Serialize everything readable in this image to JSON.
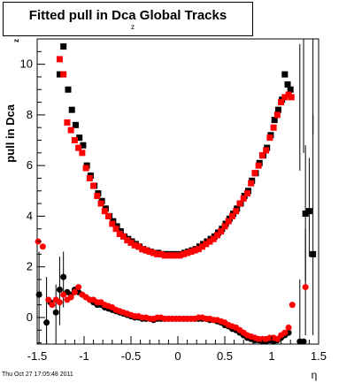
{
  "chart_data": {
    "type": "scatter",
    "title": "Fitted pull in Dca",
    "title_subscript": "z",
    "title_suffix": " Global Tracks",
    "ylabel": "pull in Dca",
    "ylabel_subscript": "z",
    "xlabel": "η",
    "xlim": [
      -1.5,
      1.5
    ],
    "ylim": [
      -1.05,
      11.0
    ],
    "xticks": [
      -1.5,
      -1,
      -0.5,
      0,
      0.5,
      1,
      1.5
    ],
    "xtick_labels": [
      "-1.5",
      "-1",
      "-0.5",
      "0",
      "0.5",
      "1",
      "1.5"
    ],
    "yticks": [
      0,
      2,
      4,
      6,
      8,
      10
    ],
    "ytick_labels": [
      "0",
      "2",
      "4",
      "6",
      "8",
      "10"
    ],
    "grid": false,
    "legend": "none",
    "series": [
      {
        "marker": "square",
        "color": "#000000",
        "points": [
          [
            -1.22,
            10.7
          ],
          [
            -1.26,
            9.6
          ],
          [
            -1.17,
            9.0
          ],
          [
            -1.13,
            8.2
          ],
          [
            -1.09,
            7.6
          ],
          [
            -1.05,
            7.1
          ],
          [
            -1.01,
            6.8
          ],
          [
            -0.97,
            6.0
          ],
          [
            -0.93,
            5.6
          ],
          [
            -0.89,
            5.2
          ],
          [
            -0.85,
            4.9
          ],
          [
            -0.81,
            4.6
          ],
          [
            -0.77,
            4.3
          ],
          [
            -0.73,
            4.0
          ],
          [
            -0.69,
            3.8
          ],
          [
            -0.65,
            3.6
          ],
          [
            -0.61,
            3.4
          ],
          [
            -0.57,
            3.2
          ],
          [
            -0.53,
            3.1
          ],
          [
            -0.49,
            3.0
          ],
          [
            -0.45,
            2.9
          ],
          [
            -0.41,
            2.8
          ],
          [
            -0.37,
            2.7
          ],
          [
            -0.33,
            2.65
          ],
          [
            -0.29,
            2.6
          ],
          [
            -0.25,
            2.55
          ],
          [
            -0.21,
            2.55
          ],
          [
            -0.17,
            2.5
          ],
          [
            -0.13,
            2.5
          ],
          [
            -0.09,
            2.5
          ],
          [
            -0.05,
            2.5
          ],
          [
            -0.01,
            2.5
          ],
          [
            0.03,
            2.5
          ],
          [
            0.07,
            2.55
          ],
          [
            0.11,
            2.6
          ],
          [
            0.15,
            2.65
          ],
          [
            0.19,
            2.7
          ],
          [
            0.23,
            2.8
          ],
          [
            0.27,
            2.9
          ],
          [
            0.31,
            3.0
          ],
          [
            0.35,
            3.1
          ],
          [
            0.39,
            3.2
          ],
          [
            0.43,
            3.35
          ],
          [
            0.47,
            3.5
          ],
          [
            0.51,
            3.7
          ],
          [
            0.55,
            3.9
          ],
          [
            0.59,
            4.1
          ],
          [
            0.63,
            4.3
          ],
          [
            0.67,
            4.5
          ],
          [
            0.71,
            4.8
          ],
          [
            0.75,
            5.0
          ],
          [
            0.79,
            5.4
          ],
          [
            0.83,
            5.7
          ],
          [
            0.87,
            6.1
          ],
          [
            0.91,
            6.4
          ],
          [
            0.95,
            6.7
          ],
          [
            0.99,
            7.2
          ],
          [
            1.03,
            7.8
          ],
          [
            1.07,
            8.2
          ],
          [
            1.11,
            8.6
          ],
          [
            1.14,
            9.6
          ],
          [
            1.17,
            9.2
          ],
          [
            1.2,
            9.0
          ],
          [
            1.36,
            4.1
          ],
          [
            1.4,
            4.2
          ],
          [
            1.44,
            2.5
          ]
        ]
      },
      {
        "marker": "square",
        "color": "#ff0000",
        "points": [
          [
            -1.26,
            10.2
          ],
          [
            -1.22,
            9.6
          ],
          [
            -1.18,
            7.7
          ],
          [
            -1.14,
            7.4
          ],
          [
            -1.1,
            7.0
          ],
          [
            -1.06,
            6.7
          ],
          [
            -1.02,
            6.5
          ],
          [
            -0.98,
            5.9
          ],
          [
            -0.94,
            5.5
          ],
          [
            -0.9,
            5.2
          ],
          [
            -0.86,
            4.8
          ],
          [
            -0.82,
            4.5
          ],
          [
            -0.78,
            4.2
          ],
          [
            -0.74,
            4.0
          ],
          [
            -0.7,
            3.7
          ],
          [
            -0.66,
            3.5
          ],
          [
            -0.62,
            3.3
          ],
          [
            -0.58,
            3.2
          ],
          [
            -0.54,
            3.05
          ],
          [
            -0.5,
            2.95
          ],
          [
            -0.46,
            2.85
          ],
          [
            -0.42,
            2.8
          ],
          [
            -0.38,
            2.7
          ],
          [
            -0.34,
            2.65
          ],
          [
            -0.3,
            2.6
          ],
          [
            -0.26,
            2.55
          ],
          [
            -0.22,
            2.5
          ],
          [
            -0.18,
            2.5
          ],
          [
            -0.14,
            2.45
          ],
          [
            -0.1,
            2.45
          ],
          [
            -0.06,
            2.45
          ],
          [
            -0.02,
            2.45
          ],
          [
            0.02,
            2.45
          ],
          [
            0.06,
            2.5
          ],
          [
            0.1,
            2.55
          ],
          [
            0.14,
            2.6
          ],
          [
            0.18,
            2.65
          ],
          [
            0.22,
            2.7
          ],
          [
            0.26,
            2.8
          ],
          [
            0.3,
            2.9
          ],
          [
            0.34,
            3.0
          ],
          [
            0.38,
            3.1
          ],
          [
            0.42,
            3.25
          ],
          [
            0.46,
            3.4
          ],
          [
            0.5,
            3.6
          ],
          [
            0.54,
            3.8
          ],
          [
            0.58,
            4.0
          ],
          [
            0.62,
            4.2
          ],
          [
            0.66,
            4.5
          ],
          [
            0.7,
            4.7
          ],
          [
            0.74,
            4.9
          ],
          [
            0.78,
            5.3
          ],
          [
            0.82,
            5.7
          ],
          [
            0.86,
            6.0
          ],
          [
            0.9,
            6.4
          ],
          [
            0.94,
            6.6
          ],
          [
            0.98,
            7.1
          ],
          [
            1.02,
            7.5
          ],
          [
            1.06,
            8.0
          ],
          [
            1.1,
            8.5
          ],
          [
            1.14,
            8.7
          ],
          [
            1.18,
            8.8
          ],
          [
            1.21,
            8.7
          ]
        ]
      },
      {
        "marker": "circle",
        "color": "#000000",
        "points": [
          [
            -1.48,
            0.9
          ],
          [
            -1.4,
            -0.2
          ],
          [
            -1.36,
            0.6
          ],
          [
            -1.3,
            0.2
          ],
          [
            -1.26,
            1.1
          ],
          [
            -1.22,
            1.6
          ],
          [
            -1.18,
            1.0
          ],
          [
            -1.14,
            0.9
          ],
          [
            -1.1,
            1.1
          ],
          [
            -1.06,
            1.0
          ],
          [
            -1.02,
            0.9
          ],
          [
            -0.98,
            0.8
          ],
          [
            -0.94,
            0.7
          ],
          [
            -0.9,
            0.6
          ],
          [
            -0.86,
            0.5
          ],
          [
            -0.82,
            0.5
          ],
          [
            -0.78,
            0.4
          ],
          [
            -0.74,
            0.35
          ],
          [
            -0.7,
            0.3
          ],
          [
            -0.66,
            0.25
          ],
          [
            -0.62,
            0.2
          ],
          [
            -0.58,
            0.15
          ],
          [
            -0.54,
            0.1
          ],
          [
            -0.5,
            0.05
          ],
          [
            -0.46,
            0.0
          ],
          [
            -0.42,
            0.0
          ],
          [
            -0.38,
            -0.05
          ],
          [
            -0.34,
            -0.05
          ],
          [
            -0.3,
            -0.05
          ],
          [
            -0.26,
            -0.1
          ],
          [
            -0.22,
            -0.05
          ],
          [
            -0.18,
            -0.05
          ],
          [
            -0.14,
            -0.05
          ],
          [
            -0.1,
            -0.05
          ],
          [
            -0.06,
            -0.05
          ],
          [
            -0.02,
            -0.05
          ],
          [
            0.02,
            -0.05
          ],
          [
            0.06,
            -0.05
          ],
          [
            0.1,
            -0.05
          ],
          [
            0.14,
            -0.05
          ],
          [
            0.18,
            -0.05
          ],
          [
            0.22,
            -0.05
          ],
          [
            0.26,
            -0.05
          ],
          [
            0.3,
            -0.05
          ],
          [
            0.34,
            -0.1
          ],
          [
            0.38,
            -0.1
          ],
          [
            0.42,
            -0.15
          ],
          [
            0.46,
            -0.2
          ],
          [
            0.5,
            -0.3
          ],
          [
            0.54,
            -0.35
          ],
          [
            0.58,
            -0.45
          ],
          [
            0.62,
            -0.5
          ],
          [
            0.66,
            -0.6
          ],
          [
            0.7,
            -0.7
          ],
          [
            0.74,
            -0.8
          ],
          [
            0.78,
            -0.85
          ],
          [
            0.82,
            -0.9
          ],
          [
            0.86,
            -0.9
          ],
          [
            0.9,
            -0.95
          ],
          [
            0.94,
            -0.95
          ],
          [
            0.98,
            -0.9
          ],
          [
            1.02,
            -0.95
          ],
          [
            1.06,
            -0.9
          ],
          [
            1.1,
            -0.8
          ],
          [
            1.14,
            -0.7
          ],
          [
            1.18,
            -0.6
          ],
          [
            1.3,
            -0.95
          ],
          [
            1.34,
            -0.95
          ]
        ]
      },
      {
        "marker": "circle",
        "color": "#ff0000",
        "points": [
          [
            -1.49,
            3.0
          ],
          [
            -1.44,
            2.8
          ],
          [
            -1.38,
            0.7
          ],
          [
            -1.34,
            0.5
          ],
          [
            -1.3,
            0.7
          ],
          [
            -1.26,
            0.6
          ],
          [
            -1.22,
            0.9
          ],
          [
            -1.18,
            0.7
          ],
          [
            -1.14,
            0.8
          ],
          [
            -1.1,
            1.0
          ],
          [
            -1.06,
            1.2
          ],
          [
            -1.02,
            0.9
          ],
          [
            -0.98,
            0.8
          ],
          [
            -0.94,
            0.7
          ],
          [
            -0.9,
            0.7
          ],
          [
            -0.86,
            0.6
          ],
          [
            -0.82,
            0.6
          ],
          [
            -0.78,
            0.5
          ],
          [
            -0.74,
            0.45
          ],
          [
            -0.7,
            0.4
          ],
          [
            -0.66,
            0.3
          ],
          [
            -0.62,
            0.25
          ],
          [
            -0.58,
            0.2
          ],
          [
            -0.54,
            0.15
          ],
          [
            -0.5,
            0.1
          ],
          [
            -0.46,
            0.05
          ],
          [
            -0.42,
            0.05
          ],
          [
            -0.38,
            0.0
          ],
          [
            -0.34,
            0.0
          ],
          [
            -0.3,
            -0.05
          ],
          [
            -0.26,
            -0.05
          ],
          [
            -0.22,
            0.0
          ],
          [
            -0.18,
            0.0
          ],
          [
            -0.14,
            -0.05
          ],
          [
            -0.1,
            -0.05
          ],
          [
            -0.06,
            -0.05
          ],
          [
            -0.02,
            -0.05
          ],
          [
            0.02,
            -0.05
          ],
          [
            0.06,
            -0.05
          ],
          [
            0.1,
            -0.05
          ],
          [
            0.14,
            -0.05
          ],
          [
            0.18,
            -0.05
          ],
          [
            0.22,
            0.0
          ],
          [
            0.26,
            0.0
          ],
          [
            0.3,
            -0.05
          ],
          [
            0.34,
            -0.05
          ],
          [
            0.38,
            -0.1
          ],
          [
            0.42,
            -0.1
          ],
          [
            0.46,
            -0.15
          ],
          [
            0.5,
            -0.2
          ],
          [
            0.54,
            -0.3
          ],
          [
            0.58,
            -0.35
          ],
          [
            0.62,
            -0.4
          ],
          [
            0.66,
            -0.5
          ],
          [
            0.7,
            -0.6
          ],
          [
            0.74,
            -0.7
          ],
          [
            0.78,
            -0.75
          ],
          [
            0.82,
            -0.8
          ],
          [
            0.86,
            -0.85
          ],
          [
            0.9,
            -0.85
          ],
          [
            0.94,
            -0.85
          ],
          [
            0.98,
            -0.8
          ],
          [
            1.02,
            -0.8
          ],
          [
            1.06,
            -0.85
          ],
          [
            1.1,
            -0.7
          ],
          [
            1.14,
            -0.6
          ],
          [
            1.18,
            -0.4
          ],
          [
            1.22,
            0.5
          ],
          [
            1.36,
            1.2
          ]
        ]
      }
    ],
    "error_bars": [
      {
        "x": -1.48,
        "y": 0.9,
        "lo": -1.05,
        "hi": 2.6
      },
      {
        "x": -1.4,
        "y": -0.2,
        "lo": -1.05,
        "hi": 1.6
      },
      {
        "x": -1.26,
        "y": 1.1,
        "lo": -0.3,
        "hi": 2.4
      },
      {
        "x": -1.22,
        "y": 1.6,
        "lo": 0.4,
        "hi": 2.6
      },
      {
        "x": -1.3,
        "y": 0.2,
        "lo": -0.9,
        "hi": 1.3
      },
      {
        "x": 1.3,
        "y": -0.95,
        "lo": -1.05,
        "hi": 1.5
      },
      {
        "x": 1.36,
        "y": 4.1,
        "lo": 1.4,
        "hi": 6.8
      },
      {
        "x": 1.4,
        "y": 4.2,
        "lo": 2.4,
        "hi": 6.3
      },
      {
        "x": 1.44,
        "y": 2.5,
        "lo": -0.7,
        "hi": 8.0
      },
      {
        "x": 1.36,
        "y": 1.2,
        "lo": -0.7,
        "hi": 3.5
      },
      {
        "x": 1.3,
        "y": 8.0,
        "lo": 5.8,
        "hi": 10.8
      },
      {
        "x": 1.34,
        "y": 8.6,
        "lo": 6.5,
        "hi": 11.0
      },
      {
        "x": 1.44,
        "y": 9.0,
        "lo": 7.2,
        "hi": 11.0
      }
    ]
  },
  "footer": {
    "timestamp": "Thu Oct 27 17:05:48 2011"
  }
}
